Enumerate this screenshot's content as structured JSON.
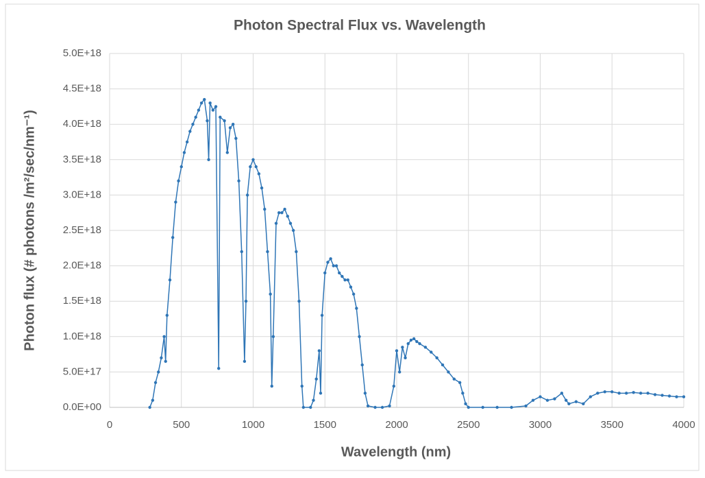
{
  "chart_data": {
    "type": "line",
    "title": "Photon Spectral Flux vs. Wavelength",
    "x_label": "Wavelength (nm)",
    "y_label": "Photon flux (# photons /m²/sec/nm⁻¹)",
    "color": "#2e75b6",
    "grid": true,
    "xlim": [
      0,
      4000
    ],
    "xticks": [
      0,
      500,
      1000,
      1500,
      2000,
      2500,
      3000,
      3500,
      4000
    ],
    "ylim": [
      0,
      5e+18
    ],
    "yticks": [
      {
        "value": 0,
        "label": "0.0E+00"
      },
      {
        "value": 5e+17,
        "label": "5.0E+17"
      },
      {
        "value": 1e+18,
        "label": "1.0E+18"
      },
      {
        "value": 1.5e+18,
        "label": "1.5E+18"
      },
      {
        "value": 2e+18,
        "label": "2.0E+18"
      },
      {
        "value": 2.5e+18,
        "label": "2.5E+18"
      },
      {
        "value": 3e+18,
        "label": "3.0E+18"
      },
      {
        "value": 3.5e+18,
        "label": "3.5E+18"
      },
      {
        "value": 4e+18,
        "label": "4.0E+18"
      },
      {
        "value": 4.5e+18,
        "label": "4.5E+18"
      },
      {
        "value": 5e+18,
        "label": "5.0E+18"
      }
    ],
    "x": [
      280,
      300,
      320,
      340,
      360,
      380,
      390,
      400,
      420,
      440,
      460,
      480,
      500,
      520,
      540,
      560,
      580,
      600,
      620,
      640,
      660,
      680,
      690,
      700,
      720,
      740,
      760,
      770,
      800,
      820,
      840,
      860,
      880,
      900,
      920,
      940,
      950,
      960,
      980,
      1000,
      1020,
      1040,
      1060,
      1080,
      1100,
      1120,
      1130,
      1140,
      1160,
      1180,
      1200,
      1220,
      1240,
      1260,
      1280,
      1300,
      1320,
      1340,
      1350,
      1400,
      1420,
      1440,
      1460,
      1470,
      1480,
      1500,
      1520,
      1540,
      1560,
      1580,
      1600,
      1620,
      1640,
      1660,
      1680,
      1700,
      1720,
      1740,
      1760,
      1780,
      1800,
      1850,
      1900,
      1950,
      1980,
      2000,
      2020,
      2040,
      2060,
      2080,
      2100,
      2120,
      2140,
      2160,
      2200,
      2240,
      2280,
      2320,
      2360,
      2400,
      2440,
      2460,
      2480,
      2500,
      2600,
      2700,
      2800,
      2900,
      2950,
      3000,
      3050,
      3100,
      3150,
      3180,
      3200,
      3250,
      3300,
      3350,
      3400,
      3450,
      3500,
      3550,
      3600,
      3650,
      3700,
      3750,
      3800,
      3850,
      3900,
      3950,
      4000
    ],
    "values": [
      0,
      1e+17,
      3.5e+17,
      5e+17,
      7e+17,
      1e+18,
      6.5e+17,
      1.3e+18,
      1.8e+18,
      2.4e+18,
      2.9e+18,
      3.2e+18,
      3.4e+18,
      3.6e+18,
      3.75e+18,
      3.9e+18,
      4e+18,
      4.1e+18,
      4.2e+18,
      4.3e+18,
      4.35e+18,
      4.05e+18,
      3.5e+18,
      4.3e+18,
      4.2e+18,
      4.25e+18,
      5.5e+17,
      4.1e+18,
      4.05e+18,
      3.6e+18,
      3.95e+18,
      4e+18,
      3.8e+18,
      3.2e+18,
      2.2e+18,
      6.5e+17,
      1.5e+18,
      3e+18,
      3.4e+18,
      3.5e+18,
      3.4e+18,
      3.3e+18,
      3.1e+18,
      2.8e+18,
      2.2e+18,
      1.6e+18,
      3e+17,
      1e+18,
      2.6e+18,
      2.75e+18,
      2.75e+18,
      2.8e+18,
      2.7e+18,
      2.6e+18,
      2.5e+18,
      2.2e+18,
      1.5e+18,
      3e+17,
      0,
      0,
      1e+17,
      4e+17,
      8e+17,
      2e+17,
      1.3e+18,
      1.9e+18,
      2.05e+18,
      2.1e+18,
      2e+18,
      2e+18,
      1.9e+18,
      1.85e+18,
      1.8e+18,
      1.8e+18,
      1.7e+18,
      1.6e+18,
      1.4e+18,
      1e+18,
      6e+17,
      2e+17,
      2e+16,
      0,
      0,
      2e+16,
      3e+17,
      8e+17,
      5e+17,
      8.5e+17,
      7e+17,
      9e+17,
      9.5e+17,
      9.7e+17,
      9.3e+17,
      9e+17,
      8.5e+17,
      7.8e+17,
      7e+17,
      6e+17,
      5e+17,
      4e+17,
      3.5e+17,
      2e+17,
      5e+16,
      0,
      0,
      0,
      0,
      2e+16,
      1e+17,
      1.5e+17,
      1e+17,
      1.2e+17,
      2e+17,
      1e+17,
      5e+16,
      8e+16,
      5e+16,
      1.5e+17,
      2e+17,
      2.2e+17,
      2.2e+17,
      2e+17,
      2e+17,
      2.1e+17,
      2e+17,
      2e+17,
      1.8e+17,
      1.7e+17,
      1.6e+17,
      1.5e+17,
      1.5e+17
    ]
  }
}
